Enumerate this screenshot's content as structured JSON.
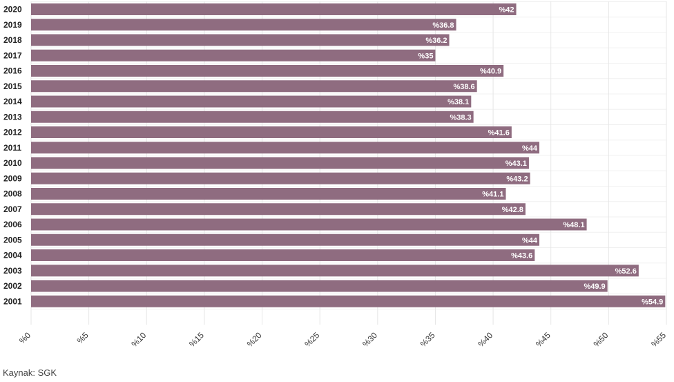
{
  "chart_data": {
    "type": "bar",
    "orientation": "horizontal",
    "categories": [
      "2020",
      "2019",
      "2018",
      "2017",
      "2016",
      "2015",
      "2014",
      "2013",
      "2012",
      "2011",
      "2010",
      "2009",
      "2008",
      "2007",
      "2006",
      "2005",
      "2004",
      "2003",
      "2002",
      "2001"
    ],
    "values": [
      42,
      36.8,
      36.2,
      35,
      40.9,
      38.6,
      38.1,
      38.3,
      41.6,
      44,
      43.1,
      43.2,
      41.1,
      42.8,
      48.1,
      44,
      43.6,
      52.6,
      49.9,
      54.9
    ],
    "value_labels": [
      "%42",
      "%36.8",
      "%36.2",
      "%35",
      "%40.9",
      "%38.6",
      "%38.1",
      "%38.3",
      "%41.6",
      "%44",
      "%43.1",
      "%43.2",
      "%41.1",
      "%42.8",
      "%48.1",
      "%44",
      "%43.6",
      "%52.6",
      "%49.9",
      "%54.9"
    ],
    "x_ticks": [
      "%0",
      "%5",
      "%10",
      "%15",
      "%20",
      "%25",
      "%30",
      "%35",
      "%40",
      "%45",
      "%50",
      "%55"
    ],
    "xlim": [
      0,
      55
    ],
    "bar_color": "#8f6c80",
    "grid": true
  },
  "source": "Kaynak: SGK"
}
